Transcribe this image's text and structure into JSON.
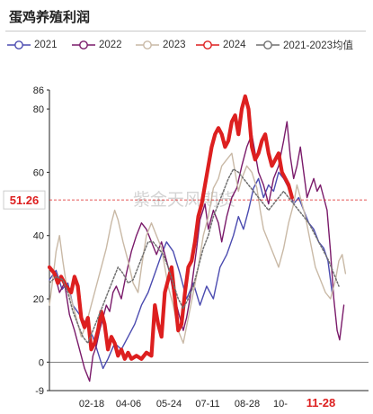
{
  "title": "蛋鸡养殖利润",
  "watermark": "紫金天风期货",
  "chart_data": {
    "type": "line",
    "title": "蛋鸡养殖利润",
    "xlabel": "",
    "ylabel": "",
    "ylim": [
      -9,
      86
    ],
    "yticks": [
      -9,
      0,
      20,
      40,
      60,
      80,
      86
    ],
    "xticks": [
      "02-18",
      "04-06",
      "05-24",
      "07-11",
      "08-28",
      "10-",
      "11-28"
    ],
    "highlight_x": "11-28",
    "latest_value": "51.26",
    "legend_position": "top",
    "grid": false,
    "series": [
      {
        "name": "2021",
        "color": "#4b4bb0",
        "width": 1.4,
        "points": [
          [
            0,
            26
          ],
          [
            8,
            29
          ],
          [
            15,
            23
          ],
          [
            22,
            25
          ],
          [
            28,
            18
          ],
          [
            36,
            15
          ],
          [
            44,
            12
          ],
          [
            52,
            8
          ],
          [
            58,
            3
          ],
          [
            64,
            -2
          ],
          [
            70,
            1
          ],
          [
            78,
            6
          ],
          [
            86,
            4
          ],
          [
            94,
            8
          ],
          [
            102,
            12
          ],
          [
            110,
            18
          ],
          [
            118,
            22
          ],
          [
            126,
            28
          ],
          [
            134,
            34
          ],
          [
            140,
            38
          ],
          [
            148,
            35
          ],
          [
            156,
            28
          ],
          [
            164,
            20
          ],
          [
            172,
            25
          ],
          [
            180,
            18
          ],
          [
            188,
            24
          ],
          [
            196,
            20
          ],
          [
            204,
            30
          ],
          [
            212,
            34
          ],
          [
            220,
            40
          ],
          [
            226,
            46
          ],
          [
            232,
            42
          ],
          [
            238,
            48
          ],
          [
            244,
            55
          ],
          [
            250,
            58
          ],
          [
            256,
            52
          ],
          [
            262,
            56
          ],
          [
            268,
            54
          ],
          [
            274,
            60
          ],
          [
            280,
            58
          ],
          [
            286,
            55
          ],
          [
            292,
            50
          ],
          [
            298,
            52
          ],
          [
            304,
            48
          ],
          [
            310,
            44
          ],
          [
            316,
            42
          ],
          [
            322,
            38
          ],
          [
            328,
            36
          ],
          [
            333,
            32
          ],
          [
            338,
            22
          ]
        ]
      },
      {
        "name": "2022",
        "color": "#7a1a6a",
        "width": 1.4,
        "points": [
          [
            0,
            30
          ],
          [
            6,
            28
          ],
          [
            12,
            22
          ],
          [
            18,
            25
          ],
          [
            24,
            15
          ],
          [
            30,
            10
          ],
          [
            36,
            4
          ],
          [
            42,
            -2
          ],
          [
            48,
            -6
          ],
          [
            52,
            2
          ],
          [
            56,
            5
          ],
          [
            60,
            10
          ],
          [
            64,
            14
          ],
          [
            68,
            18
          ],
          [
            72,
            16
          ],
          [
            76,
            22
          ],
          [
            80,
            24
          ],
          [
            86,
            20
          ],
          [
            92,
            28
          ],
          [
            98,
            35
          ],
          [
            104,
            40
          ],
          [
            110,
            44
          ],
          [
            116,
            42
          ],
          [
            122,
            38
          ],
          [
            128,
            34
          ],
          [
            134,
            38
          ],
          [
            140,
            32
          ],
          [
            144,
            28
          ],
          [
            148,
            22
          ],
          [
            152,
            18
          ],
          [
            156,
            14
          ],
          [
            160,
            10
          ],
          [
            164,
            14
          ],
          [
            168,
            20
          ],
          [
            172,
            28
          ],
          [
            176,
            36
          ],
          [
            180,
            45
          ],
          [
            186,
            50
          ],
          [
            190,
            42
          ],
          [
            196,
            48
          ],
          [
            202,
            44
          ],
          [
            206,
            38
          ],
          [
            212,
            46
          ],
          [
            218,
            52
          ],
          [
            224,
            55
          ],
          [
            230,
            62
          ],
          [
            236,
            68
          ],
          [
            242,
            72
          ],
          [
            246,
            66
          ],
          [
            250,
            60
          ],
          [
            256,
            56
          ],
          [
            262,
            50
          ],
          [
            268,
            58
          ],
          [
            274,
            62
          ],
          [
            280,
            70
          ],
          [
            284,
            76
          ],
          [
            288,
            65
          ],
          [
            292,
            58
          ],
          [
            296,
            62
          ],
          [
            300,
            68
          ],
          [
            304,
            60
          ],
          [
            308,
            52
          ],
          [
            312,
            55
          ],
          [
            316,
            58
          ],
          [
            320,
            54
          ],
          [
            324,
            56
          ],
          [
            328,
            52
          ],
          [
            332,
            48
          ],
          [
            336,
            35
          ],
          [
            340,
            20
          ],
          [
            344,
            10
          ],
          [
            347,
            7
          ],
          [
            352,
            18
          ]
        ]
      },
      {
        "name": "2023",
        "color": "#c9b9a6",
        "width": 1.4,
        "points": [
          [
            0,
            18
          ],
          [
            4,
            26
          ],
          [
            8,
            35
          ],
          [
            12,
            40
          ],
          [
            16,
            32
          ],
          [
            20,
            25
          ],
          [
            26,
            20
          ],
          [
            32,
            14
          ],
          [
            38,
            8
          ],
          [
            44,
            12
          ],
          [
            50,
            18
          ],
          [
            56,
            24
          ],
          [
            62,
            30
          ],
          [
            68,
            36
          ],
          [
            74,
            44
          ],
          [
            78,
            48
          ],
          [
            82,
            45
          ],
          [
            88,
            38
          ],
          [
            94,
            32
          ],
          [
            100,
            25
          ],
          [
            106,
            22
          ],
          [
            110,
            30
          ],
          [
            116,
            40
          ],
          [
            122,
            44
          ],
          [
            128,
            40
          ],
          [
            134,
            36
          ],
          [
            138,
            30
          ],
          [
            142,
            24
          ],
          [
            148,
            18
          ],
          [
            154,
            10
          ],
          [
            160,
            6
          ],
          [
            166,
            14
          ],
          [
            172,
            22
          ],
          [
            178,
            30
          ],
          [
            184,
            40
          ],
          [
            190,
            46
          ],
          [
            196,
            55
          ],
          [
            202,
            58
          ],
          [
            206,
            62
          ],
          [
            212,
            64
          ],
          [
            218,
            66
          ],
          [
            222,
            60
          ],
          [
            226,
            54
          ],
          [
            230,
            58
          ],
          [
            236,
            62
          ],
          [
            242,
            60
          ],
          [
            248,
            55
          ],
          [
            252,
            48
          ],
          [
            256,
            42
          ],
          [
            262,
            38
          ],
          [
            268,
            34
          ],
          [
            274,
            30
          ],
          [
            280,
            36
          ],
          [
            286,
            44
          ],
          [
            292,
            50
          ],
          [
            296,
            56
          ],
          [
            300,
            52
          ],
          [
            306,
            46
          ],
          [
            312,
            38
          ],
          [
            318,
            30
          ],
          [
            324,
            26
          ],
          [
            330,
            22
          ],
          [
            336,
            20
          ],
          [
            342,
            26
          ],
          [
            346,
            32
          ],
          [
            350,
            34
          ],
          [
            354,
            28
          ]
        ]
      },
      {
        "name": "2024",
        "color": "#dd1f1f",
        "width": 4.2,
        "points": [
          [
            0,
            30
          ],
          [
            6,
            28
          ],
          [
            10,
            25
          ],
          [
            14,
            27
          ],
          [
            20,
            24
          ],
          [
            26,
            22
          ],
          [
            30,
            27
          ],
          [
            34,
            24
          ],
          [
            38,
            14
          ],
          [
            42,
            11
          ],
          [
            46,
            14
          ],
          [
            50,
            4
          ],
          [
            54,
            6
          ],
          [
            58,
            10
          ],
          [
            62,
            16
          ],
          [
            66,
            12
          ],
          [
            70,
            4
          ],
          [
            74,
            8
          ],
          [
            78,
            6
          ],
          [
            82,
            2
          ],
          [
            86,
            4
          ],
          [
            90,
            1
          ],
          [
            94,
            3
          ],
          [
            98,
            1
          ],
          [
            104,
            2
          ],
          [
            110,
            1
          ],
          [
            116,
            3
          ],
          [
            122,
            2
          ],
          [
            126,
            18
          ],
          [
            130,
            12
          ],
          [
            134,
            8
          ],
          [
            138,
            22
          ],
          [
            142,
            26
          ],
          [
            146,
            30
          ],
          [
            150,
            20
          ],
          [
            154,
            10
          ],
          [
            158,
            12
          ],
          [
            162,
            22
          ],
          [
            166,
            30
          ],
          [
            170,
            32
          ],
          [
            174,
            38
          ],
          [
            178,
            46
          ],
          [
            182,
            50
          ],
          [
            186,
            56
          ],
          [
            190,
            62
          ],
          [
            194,
            68
          ],
          [
            198,
            72
          ],
          [
            202,
            74
          ],
          [
            206,
            72
          ],
          [
            210,
            68
          ],
          [
            214,
            70
          ],
          [
            218,
            76
          ],
          [
            222,
            78
          ],
          [
            226,
            72
          ],
          [
            230,
            80
          ],
          [
            234,
            84
          ],
          [
            238,
            80
          ],
          [
            242,
            68
          ],
          [
            246,
            64
          ],
          [
            250,
            66
          ],
          [
            254,
            70
          ],
          [
            258,
            72
          ],
          [
            262,
            66
          ],
          [
            266,
            62
          ],
          [
            270,
            64
          ],
          [
            274,
            66
          ],
          [
            278,
            60
          ],
          [
            282,
            58
          ],
          [
            286,
            56
          ],
          [
            290,
            52
          ]
        ]
      },
      {
        "name": "2021-2023均值",
        "color": "#707070",
        "width": 1.5,
        "dash": "2,2",
        "points": [
          [
            0,
            25
          ],
          [
            8,
            27
          ],
          [
            16,
            26
          ],
          [
            22,
            22
          ],
          [
            28,
            16
          ],
          [
            34,
            12
          ],
          [
            40,
            8
          ],
          [
            46,
            6
          ],
          [
            52,
            10
          ],
          [
            58,
            14
          ],
          [
            64,
            18
          ],
          [
            70,
            22
          ],
          [
            76,
            26
          ],
          [
            82,
            30
          ],
          [
            88,
            28
          ],
          [
            94,
            25
          ],
          [
            100,
            26
          ],
          [
            106,
            30
          ],
          [
            112,
            34
          ],
          [
            118,
            38
          ],
          [
            124,
            38
          ],
          [
            130,
            36
          ],
          [
            136,
            34
          ],
          [
            142,
            30
          ],
          [
            148,
            25
          ],
          [
            154,
            20
          ],
          [
            160,
            17
          ],
          [
            166,
            20
          ],
          [
            172,
            24
          ],
          [
            178,
            30
          ],
          [
            184,
            36
          ],
          [
            190,
            40
          ],
          [
            196,
            46
          ],
          [
            202,
            50
          ],
          [
            208,
            54
          ],
          [
            214,
            58
          ],
          [
            220,
            61
          ],
          [
            226,
            60
          ],
          [
            232,
            58
          ],
          [
            238,
            56
          ],
          [
            244,
            54
          ],
          [
            250,
            52
          ],
          [
            256,
            50
          ],
          [
            262,
            48
          ],
          [
            268,
            50
          ],
          [
            274,
            52
          ],
          [
            280,
            54
          ],
          [
            286,
            52
          ],
          [
            292,
            50
          ],
          [
            298,
            48
          ],
          [
            304,
            46
          ],
          [
            310,
            44
          ],
          [
            316,
            41
          ],
          [
            322,
            38
          ],
          [
            328,
            35
          ],
          [
            334,
            32
          ],
          [
            340,
            28
          ],
          [
            346,
            24
          ]
        ]
      }
    ]
  }
}
